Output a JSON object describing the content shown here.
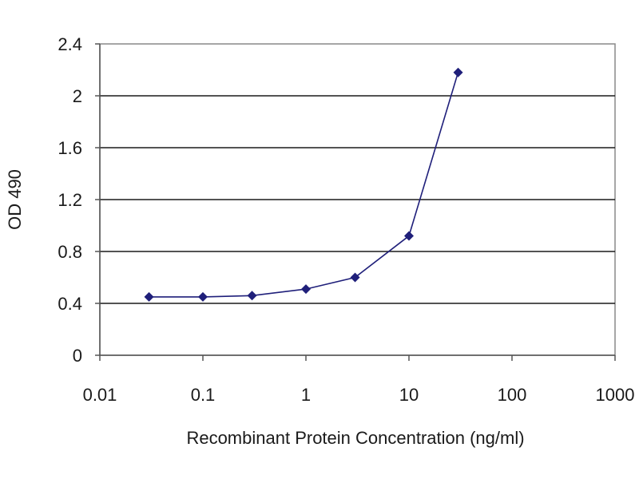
{
  "chart_data": {
    "type": "line",
    "title": "",
    "xlabel": "Recombinant Protein Concentration (ng/ml)",
    "ylabel": "OD 490",
    "xscale": "log",
    "xlim": [
      0.01,
      1000
    ],
    "ylim": [
      0,
      2.4
    ],
    "x_ticks": [
      "0.01",
      "0.1",
      "1",
      "10",
      "100",
      "1000"
    ],
    "y_ticks": [
      "0",
      "0.4",
      "0.8",
      "1.2",
      "1.6",
      "2",
      "2.4"
    ],
    "grid": "horizontal",
    "legend": "none",
    "series": [
      {
        "color": "#1f1f7a",
        "marker": "diamond",
        "x": [
          0.03,
          0.1,
          0.3,
          1,
          3,
          10,
          30
        ],
        "y": [
          0.45,
          0.45,
          0.46,
          0.51,
          0.6,
          0.92,
          2.18
        ]
      }
    ]
  }
}
